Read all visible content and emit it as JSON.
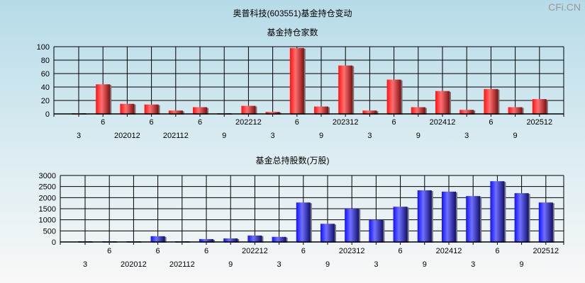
{
  "title": "奥普科技(603551)基金持仓变动",
  "watermark": "CFi.CN",
  "categories_top_row": [
    "",
    "6",
    "",
    "6",
    "",
    "6",
    "",
    "202212",
    "",
    "6",
    "",
    "202312",
    "",
    "6",
    "",
    "202412",
    "",
    "6",
    "",
    "202512"
  ],
  "categories_bottom_row": [
    "3",
    "",
    "202012",
    "",
    "202112",
    "",
    "9",
    "",
    "3",
    "",
    "9",
    "",
    "3",
    "",
    "9",
    "",
    "3",
    "",
    "9",
    ""
  ],
  "chart_data": [
    {
      "type": "bar",
      "title": "基金持仓家数",
      "categories": [
        "3",
        "6",
        "202012",
        "6",
        "202112",
        "6",
        "9",
        "202212",
        "3",
        "6",
        "9",
        "202312",
        "3",
        "6",
        "9",
        "202412",
        "3",
        "6",
        "9",
        "202512"
      ],
      "values": [
        1,
        44,
        15,
        14,
        5,
        10,
        1,
        12,
        3,
        98,
        11,
        72,
        5,
        51,
        10,
        34,
        6,
        37,
        10,
        22
      ],
      "ylim": [
        0,
        100
      ],
      "yticks": [
        0,
        20,
        40,
        60,
        80,
        100
      ],
      "grid": true,
      "color": "#e8262c"
    },
    {
      "type": "bar",
      "title": "基金总持股数(万股)",
      "categories": [
        "3",
        "6",
        "202012",
        "6",
        "202112",
        "6",
        "9",
        "202212",
        "3",
        "6",
        "9",
        "202312",
        "3",
        "6",
        "9",
        "202412",
        "3",
        "6",
        "9",
        "202512"
      ],
      "values": [
        30,
        30,
        30,
        260,
        30,
        130,
        160,
        290,
        230,
        1780,
        820,
        1500,
        1000,
        1590,
        2330,
        2270,
        2070,
        2740,
        2200,
        1780
      ],
      "ylim": [
        0,
        3000
      ],
      "yticks": [
        0,
        500,
        1000,
        1500,
        2000,
        2500,
        3000
      ],
      "grid": true,
      "color": "#2b2bea"
    }
  ]
}
